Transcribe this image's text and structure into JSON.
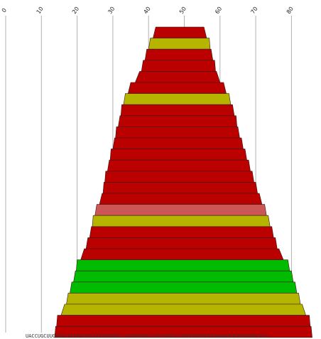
{
  "chart_data": {
    "type": "bar",
    "orientation": "horizontal",
    "description_units": "each row spans a start–end interval on the position axis",
    "x_axis": {
      "min": 0,
      "max": 86,
      "ticks": [
        0,
        10,
        20,
        30,
        40,
        50,
        60,
        70,
        80
      ],
      "grid": true
    },
    "sequence": "UACCUGCUUGGGACACAUACUUCUUUAUAUUCCCAUAUGAACCUGCUAACCUAUGGAAUGUAAAGAAGUAUGUAUUUCACG",
    "colors": {
      "red": "#bb0000",
      "yellow": "#b5b500",
      "green": "#00bb00",
      "salmon": "#cc5555"
    },
    "rows": [
      {
        "start": 42,
        "end": 55.5,
        "color": "red"
      },
      {
        "start": 40.5,
        "end": 57,
        "color": "yellow"
      },
      {
        "start": 39.5,
        "end": 57.5,
        "color": "red"
      },
      {
        "start": 38.5,
        "end": 58.5,
        "color": "red"
      },
      {
        "start": 37.5,
        "end": 59,
        "color": "red"
      },
      {
        "start": 35,
        "end": 61,
        "color": "red"
      },
      {
        "start": 33.5,
        "end": 62.5,
        "color": "yellow"
      },
      {
        "start": 32.5,
        "end": 63.5,
        "color": "red"
      },
      {
        "start": 32,
        "end": 64.5,
        "color": "red"
      },
      {
        "start": 31,
        "end": 65,
        "color": "red"
      },
      {
        "start": 30.5,
        "end": 66,
        "color": "red"
      },
      {
        "start": 29.5,
        "end": 67,
        "color": "red"
      },
      {
        "start": 29,
        "end": 68,
        "color": "red"
      },
      {
        "start": 28,
        "end": 69,
        "color": "red"
      },
      {
        "start": 27.5,
        "end": 70,
        "color": "red"
      },
      {
        "start": 27,
        "end": 71,
        "color": "red"
      },
      {
        "start": 25.5,
        "end": 72.5,
        "color": "salmon"
      },
      {
        "start": 24.5,
        "end": 73.5,
        "color": "yellow"
      },
      {
        "start": 24,
        "end": 74.5,
        "color": "red"
      },
      {
        "start": 23,
        "end": 75.5,
        "color": "red"
      },
      {
        "start": 22,
        "end": 76.5,
        "color": "red"
      },
      {
        "start": 20,
        "end": 79,
        "color": "green"
      },
      {
        "start": 19.5,
        "end": 80,
        "color": "green"
      },
      {
        "start": 18.5,
        "end": 81,
        "color": "green"
      },
      {
        "start": 17.5,
        "end": 82,
        "color": "yellow"
      },
      {
        "start": 16.5,
        "end": 83,
        "color": "yellow"
      },
      {
        "start": 14.5,
        "end": 85,
        "color": "red"
      },
      {
        "start": 14,
        "end": 85.5,
        "color": "red"
      }
    ]
  }
}
